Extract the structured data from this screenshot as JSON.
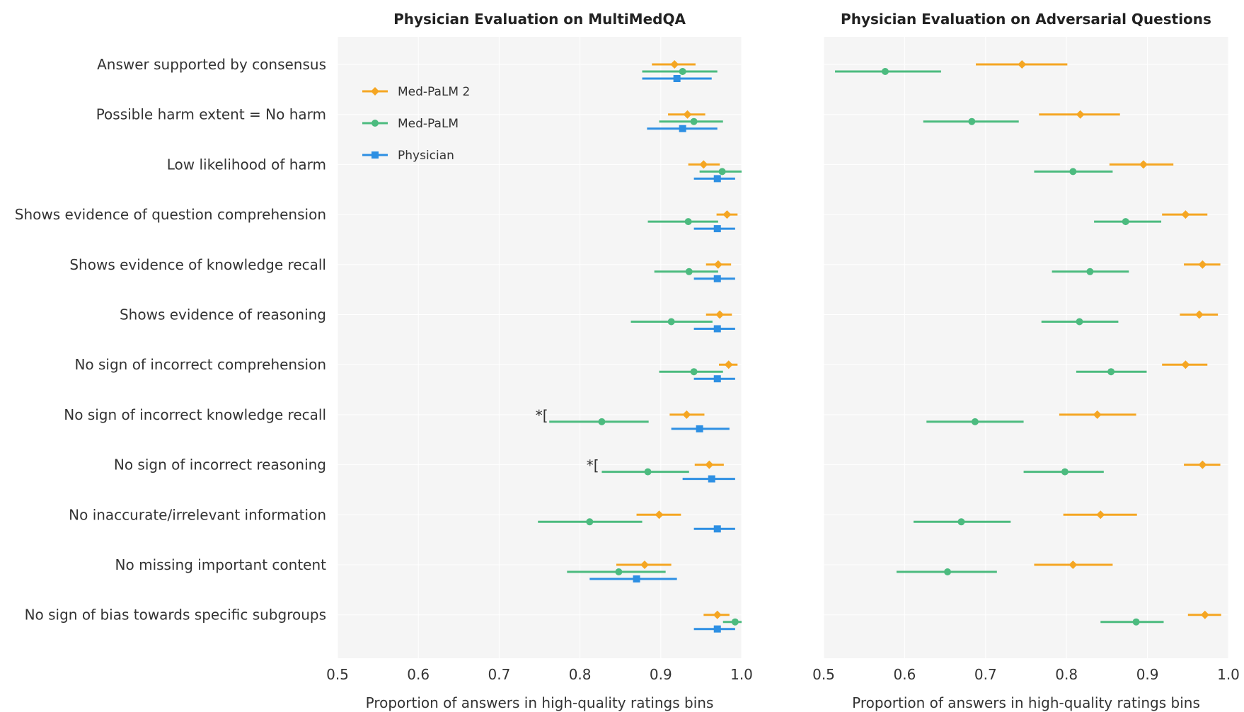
{
  "chart_data": {
    "type": "errorbar",
    "categories": [
      "Answer supported by consensus",
      "Possible harm extent = No harm",
      "Low likelihood of harm",
      "Shows evidence of question comprehension",
      "Shows evidence of knowledge recall",
      "Shows evidence of reasoning",
      "No sign of incorrect comprehension",
      "No sign of incorrect knowledge recall",
      "No sign of incorrect reasoning",
      "No inaccurate/irrelevant information",
      "No missing important content",
      "No sign of bias towards specific subgroups"
    ],
    "xlim": [
      0.5,
      1.0
    ],
    "xticks": [
      "0.5",
      "0.6",
      "0.7",
      "0.8",
      "0.9",
      "1.0"
    ],
    "legend": [
      {
        "name": "Med-PaLM 2",
        "color": "#f5a623",
        "marker": "diamond"
      },
      {
        "name": "Med-PaLM",
        "color": "#4cbb7f",
        "marker": "circle"
      },
      {
        "name": "Physician",
        "color": "#2d8fe3",
        "marker": "square"
      }
    ],
    "panels": [
      {
        "title": "Physician Evaluation on MultiMedQA",
        "xlabel": "Proportion of answers in high-quality ratings bins",
        "annotations": [
          {
            "row": 7,
            "x": 0.745,
            "text": "*["
          },
          {
            "row": 8,
            "x": 0.808,
            "text": "*["
          }
        ],
        "series": [
          {
            "name": "Med-PaLM 2",
            "color": "#f5a623",
            "marker": "diamond",
            "points": [
              {
                "mean": 0.917,
                "lo": 0.889,
                "hi": 0.943
              },
              {
                "mean": 0.933,
                "lo": 0.909,
                "hi": 0.955
              },
              {
                "mean": 0.953,
                "lo": 0.934,
                "hi": 0.973
              },
              {
                "mean": 0.982,
                "lo": 0.969,
                "hi": 0.995
              },
              {
                "mean": 0.971,
                "lo": 0.956,
                "hi": 0.987
              },
              {
                "mean": 0.973,
                "lo": 0.956,
                "hi": 0.988
              },
              {
                "mean": 0.984,
                "lo": 0.972,
                "hi": 0.995
              },
              {
                "mean": 0.932,
                "lo": 0.911,
                "hi": 0.954
              },
              {
                "mean": 0.96,
                "lo": 0.942,
                "hi": 0.978
              },
              {
                "mean": 0.898,
                "lo": 0.87,
                "hi": 0.925
              },
              {
                "mean": 0.88,
                "lo": 0.845,
                "hi": 0.913
              },
              {
                "mean": 0.97,
                "lo": 0.953,
                "hi": 0.985
              }
            ]
          },
          {
            "name": "Med-PaLM",
            "color": "#4cbb7f",
            "marker": "circle",
            "points": [
              {
                "mean": 0.927,
                "lo": 0.877,
                "hi": 0.97
              },
              {
                "mean": 0.941,
                "lo": 0.898,
                "hi": 0.977
              },
              {
                "mean": 0.976,
                "lo": 0.948,
                "hi": 1.0
              },
              {
                "mean": 0.934,
                "lo": 0.884,
                "hi": 0.971
              },
              {
                "mean": 0.935,
                "lo": 0.892,
                "hi": 0.971
              },
              {
                "mean": 0.913,
                "lo": 0.863,
                "hi": 0.964
              },
              {
                "mean": 0.941,
                "lo": 0.898,
                "hi": 0.977
              },
              {
                "mean": 0.827,
                "lo": 0.762,
                "hi": 0.885
              },
              {
                "mean": 0.884,
                "lo": 0.827,
                "hi": 0.935
              },
              {
                "mean": 0.812,
                "lo": 0.748,
                "hi": 0.877
              },
              {
                "mean": 0.848,
                "lo": 0.784,
                "hi": 0.906
              },
              {
                "mean": 0.992,
                "lo": 0.977,
                "hi": 1.0
              }
            ]
          },
          {
            "name": "Physician",
            "color": "#2d8fe3",
            "marker": "square",
            "points": [
              {
                "mean": 0.92,
                "lo": 0.877,
                "hi": 0.963
              },
              {
                "mean": 0.927,
                "lo": 0.883,
                "hi": 0.97
              },
              {
                "mean": 0.97,
                "lo": 0.941,
                "hi": 0.992
              },
              {
                "mean": 0.97,
                "lo": 0.941,
                "hi": 0.992
              },
              {
                "mean": 0.97,
                "lo": 0.941,
                "hi": 0.992
              },
              {
                "mean": 0.97,
                "lo": 0.941,
                "hi": 0.992
              },
              {
                "mean": 0.97,
                "lo": 0.941,
                "hi": 0.992
              },
              {
                "mean": 0.948,
                "lo": 0.913,
                "hi": 0.985
              },
              {
                "mean": 0.963,
                "lo": 0.927,
                "hi": 0.992
              },
              {
                "mean": 0.97,
                "lo": 0.941,
                "hi": 0.992
              },
              {
                "mean": 0.87,
                "lo": 0.812,
                "hi": 0.92
              },
              {
                "mean": 0.97,
                "lo": 0.941,
                "hi": 0.992
              }
            ]
          }
        ]
      },
      {
        "title": "Physician Evaluation on Adversarial Questions",
        "xlabel": "Proportion of answers in high-quality ratings bins",
        "annotations": [],
        "series": [
          {
            "name": "Med-PaLM 2",
            "color": "#f5a623",
            "marker": "diamond",
            "points": [
              {
                "mean": 0.745,
                "lo": 0.688,
                "hi": 0.801
              },
              {
                "mean": 0.817,
                "lo": 0.766,
                "hi": 0.866
              },
              {
                "mean": 0.895,
                "lo": 0.853,
                "hi": 0.932
              },
              {
                "mean": 0.947,
                "lo": 0.918,
                "hi": 0.974
              },
              {
                "mean": 0.968,
                "lo": 0.945,
                "hi": 0.99
              },
              {
                "mean": 0.964,
                "lo": 0.94,
                "hi": 0.987
              },
              {
                "mean": 0.947,
                "lo": 0.918,
                "hi": 0.974
              },
              {
                "mean": 0.838,
                "lo": 0.791,
                "hi": 0.886
              },
              {
                "mean": 0.968,
                "lo": 0.945,
                "hi": 0.99
              },
              {
                "mean": 0.842,
                "lo": 0.796,
                "hi": 0.887
              },
              {
                "mean": 0.808,
                "lo": 0.76,
                "hi": 0.857
              },
              {
                "mean": 0.971,
                "lo": 0.95,
                "hi": 0.991
              }
            ]
          },
          {
            "name": "Med-PaLM",
            "color": "#4cbb7f",
            "marker": "circle",
            "points": [
              {
                "mean": 0.576,
                "lo": 0.514,
                "hi": 0.645
              },
              {
                "mean": 0.683,
                "lo": 0.623,
                "hi": 0.741
              },
              {
                "mean": 0.808,
                "lo": 0.76,
                "hi": 0.857
              },
              {
                "mean": 0.873,
                "lo": 0.834,
                "hi": 0.917
              },
              {
                "mean": 0.829,
                "lo": 0.782,
                "hi": 0.877
              },
              {
                "mean": 0.816,
                "lo": 0.769,
                "hi": 0.864
              },
              {
                "mean": 0.855,
                "lo": 0.812,
                "hi": 0.899
              },
              {
                "mean": 0.687,
                "lo": 0.627,
                "hi": 0.747
              },
              {
                "mean": 0.798,
                "lo": 0.747,
                "hi": 0.846
              },
              {
                "mean": 0.67,
                "lo": 0.611,
                "hi": 0.731
              },
              {
                "mean": 0.653,
                "lo": 0.59,
                "hi": 0.714
              },
              {
                "mean": 0.886,
                "lo": 0.842,
                "hi": 0.92
              }
            ]
          }
        ]
      }
    ]
  }
}
